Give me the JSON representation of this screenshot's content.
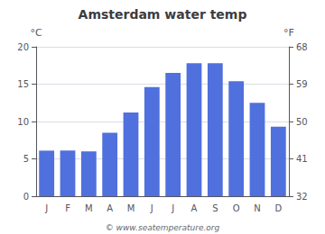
{
  "chart_data": {
    "type": "bar",
    "title": "Amsterdam water temp",
    "categories": [
      "J",
      "F",
      "M",
      "A",
      "M",
      "J",
      "J",
      "A",
      "S",
      "O",
      "N",
      "D"
    ],
    "values": [
      6.1,
      6.1,
      6.0,
      8.5,
      11.2,
      14.6,
      16.5,
      17.8,
      17.8,
      15.4,
      12.5,
      9.3
    ],
    "ylabel": "°C",
    "ylim": [
      0,
      20
    ],
    "yticks": [
      0,
      5,
      10,
      15,
      20
    ],
    "y2label": "°F",
    "y2lim": [
      32,
      68
    ],
    "y2ticks": [
      32,
      41,
      50,
      59,
      68
    ],
    "annotations": [
      "© www.seatemperature.org"
    ],
    "grid": true
  }
}
